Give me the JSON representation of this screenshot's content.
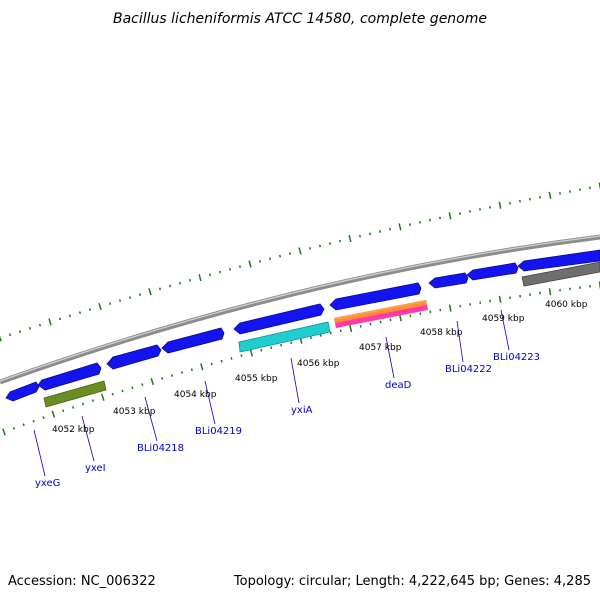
{
  "title": "Bacillus licheniformis ATCC 14580, complete genome",
  "accession": "Accession: NC_006322",
  "summary": "Topology: circular; Length: 4,222,645 bp; Genes: 4,285",
  "colors": {
    "backbone": "#8c8c8c",
    "ticks": "#1a7a1a",
    "gene_forward": "#1414f0",
    "gene_highlight_teal": "#1fcfcf",
    "gene_highlight_olive": "#6b8e23",
    "gene_highlight_grey": "#6e6e6e",
    "gene_highlight_pink": "#ff3aa8",
    "label_color": "#0000cc"
  },
  "kbp_labels": [
    "4052 kbp",
    "4053 kbp",
    "4054 kbp",
    "4055 kbp",
    "4056 kbp",
    "4057 kbp",
    "4058 kbp",
    "4059 kbp",
    "4060 kbp"
  ],
  "gene_labels": [
    "yxeG",
    "yxeI",
    "BLi04218",
    "BLi04219",
    "yxiA",
    "deaD",
    "BLi04222",
    "BLi04223"
  ]
}
